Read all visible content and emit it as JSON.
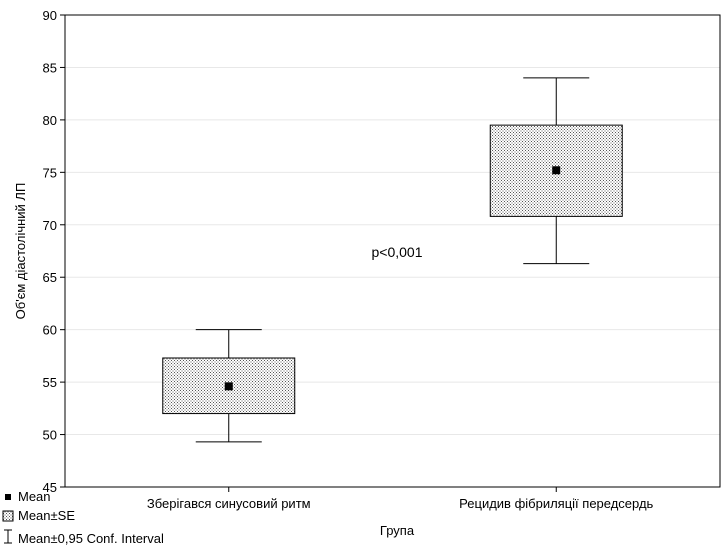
{
  "chart_data": {
    "type": "box",
    "ylabel": "Об'єм діастолічний ЛП",
    "xlabel": "Група",
    "ylim": [
      45,
      90
    ],
    "yticks": [
      45,
      50,
      55,
      60,
      65,
      70,
      75,
      80,
      85,
      90
    ],
    "grid": true,
    "categories": [
      "Зберігався синусовий ритм",
      "Рецидив фібриляції передсердь"
    ],
    "series": [
      {
        "category": "Зберігався синусовий ритм",
        "mean": 54.6,
        "se_low": 52.0,
        "se_high": 57.3,
        "ci_low": 49.3,
        "ci_high": 60.0
      },
      {
        "category": "Рецидив фібриляції передсердь",
        "mean": 75.2,
        "se_low": 70.8,
        "se_high": 79.5,
        "ci_low": 66.3,
        "ci_high": 84.0
      }
    ],
    "annotation": "p<0,001",
    "legend": {
      "placement": "bottom-left",
      "items": [
        "Mean",
        "Mean±SE",
        "Mean±0,95 Conf. Interval"
      ]
    }
  }
}
